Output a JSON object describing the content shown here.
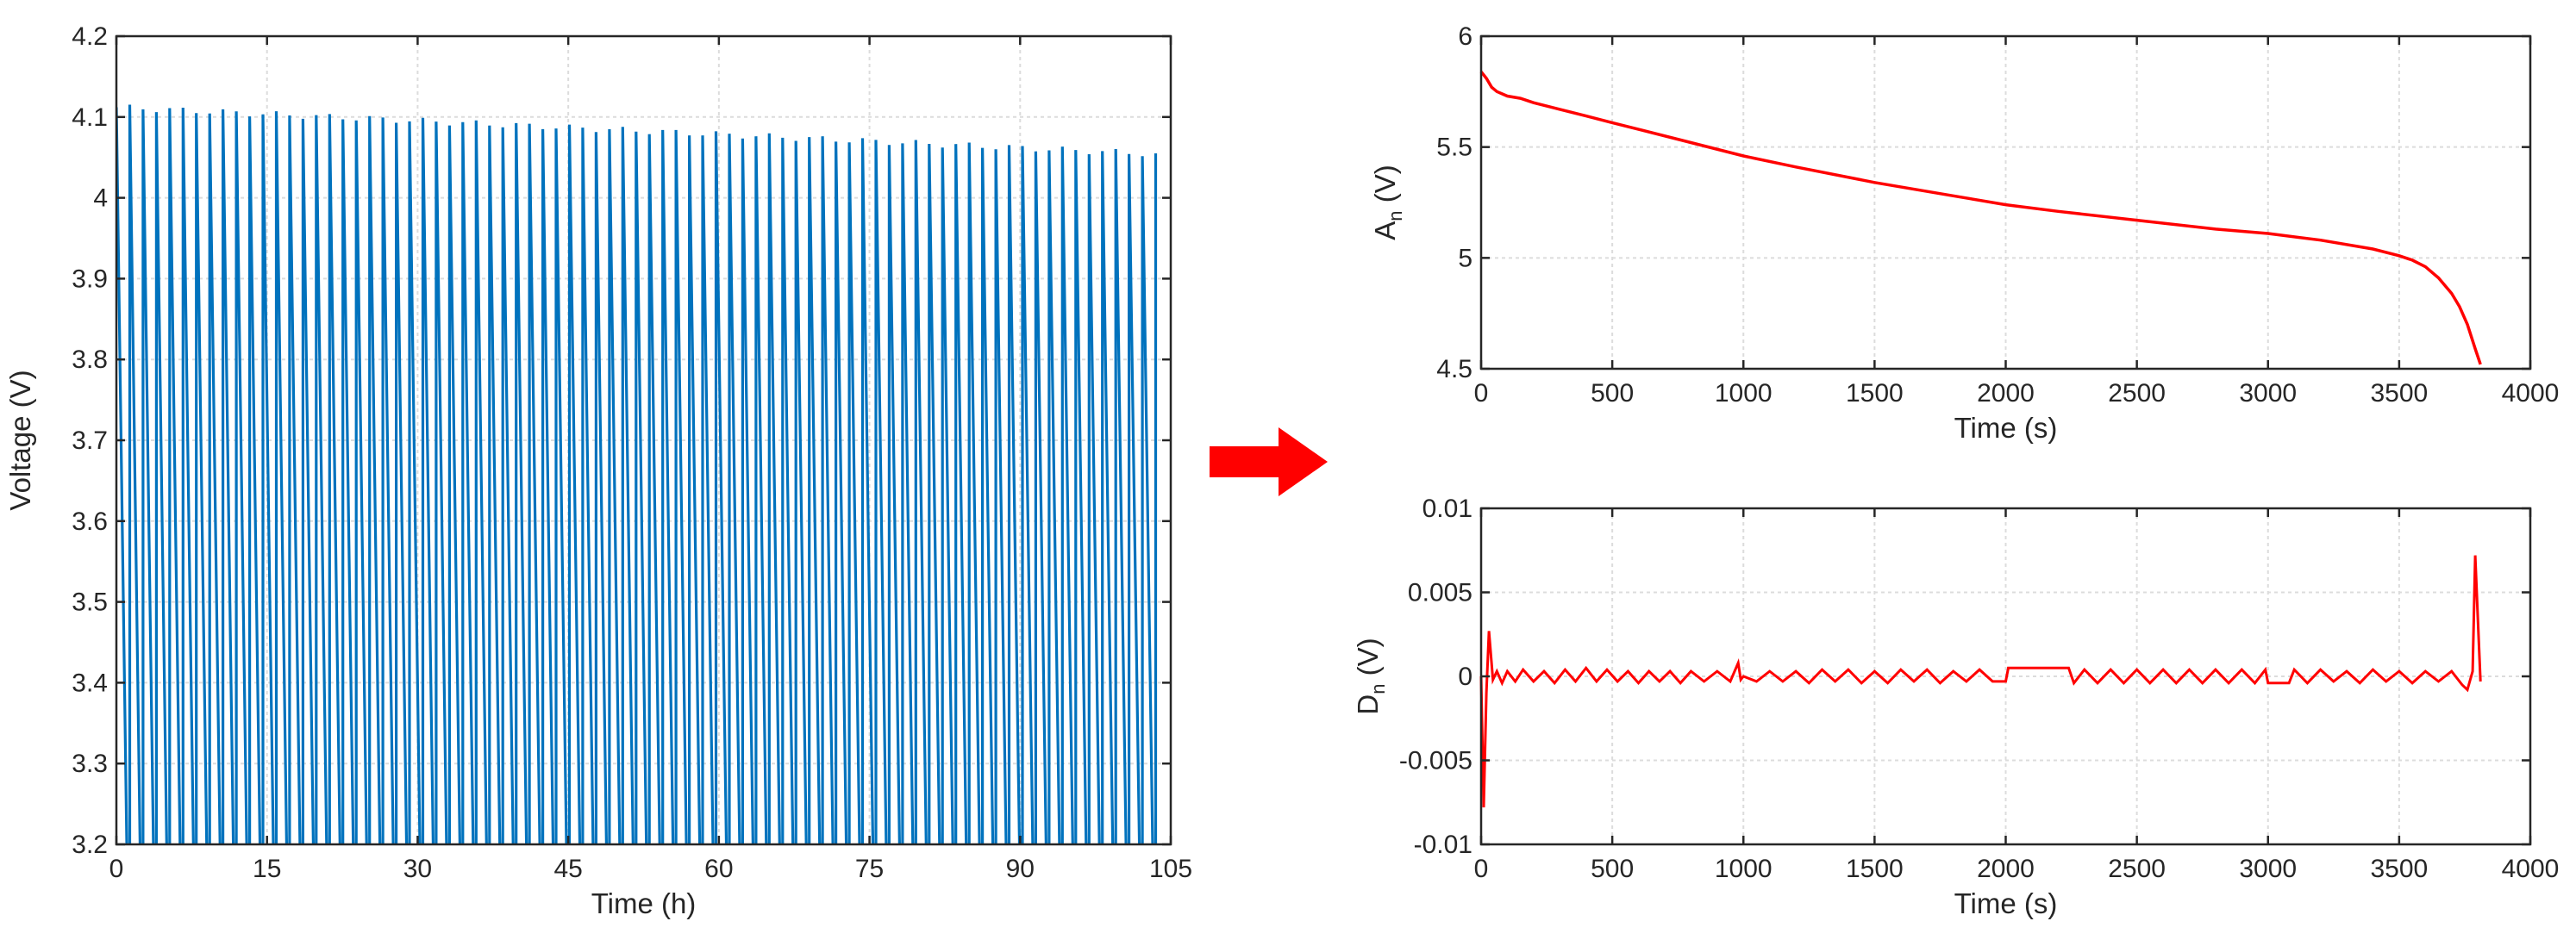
{
  "arrow_color": "#ff0000",
  "chart_data": [
    {
      "id": "voltage",
      "type": "line",
      "xlabel": "Time (h)",
      "ylabel": "Voltage (V)",
      "xlim": [
        0,
        105
      ],
      "ylim": [
        3.2,
        4.2
      ],
      "xticks": [
        0,
        15,
        30,
        45,
        60,
        75,
        90,
        105
      ],
      "yticks": [
        3.2,
        3.3,
        3.4,
        3.5,
        3.6,
        3.7,
        3.8,
        3.9,
        4,
        4.1,
        4.2
      ],
      "grid": true,
      "color": "#0072bd",
      "series": [
        {
          "pattern": "charge-discharge cycles",
          "cycles": 78,
          "x_start": 0,
          "x_end": 103.5,
          "peak_start": 4.112,
          "peak_end": 4.055,
          "trough": 3.2,
          "notes": "voltage cycles between ~4.1 V and below 3.2 V, peaks slowly decreasing"
        }
      ]
    },
    {
      "id": "An",
      "type": "line",
      "xlabel": "Time (s)",
      "ylabel": "A",
      "ylabel_sub": "n",
      "ylabel_unit": " (V)",
      "xlim": [
        0,
        4000
      ],
      "ylim": [
        4.5,
        6
      ],
      "xticks": [
        0,
        500,
        1000,
        1500,
        2000,
        2500,
        3000,
        3500,
        4000
      ],
      "yticks": [
        4.5,
        5,
        5.5,
        6
      ],
      "grid": true,
      "color": "#ff0000",
      "series": [
        {
          "x": [
            0,
            20,
            40,
            60,
            80,
            100,
            150,
            200,
            300,
            400,
            500,
            600,
            800,
            1000,
            1200,
            1500,
            1800,
            2000,
            2200,
            2500,
            2800,
            3000,
            3200,
            3400,
            3500,
            3550,
            3600,
            3650,
            3700,
            3730,
            3760,
            3790,
            3810
          ],
          "y": [
            5.84,
            5.81,
            5.77,
            5.75,
            5.74,
            5.73,
            5.72,
            5.7,
            5.67,
            5.64,
            5.61,
            5.58,
            5.52,
            5.46,
            5.41,
            5.34,
            5.28,
            5.24,
            5.21,
            5.17,
            5.13,
            5.11,
            5.08,
            5.04,
            5.01,
            4.99,
            4.96,
            4.91,
            4.84,
            4.78,
            4.7,
            4.59,
            4.52
          ]
        }
      ]
    },
    {
      "id": "Dn",
      "type": "line",
      "xlabel": "Time (s)",
      "ylabel": "D",
      "ylabel_sub": "n",
      "ylabel_unit": " (V)",
      "xlim": [
        0,
        4000
      ],
      "ylim": [
        -0.01,
        0.01
      ],
      "xticks": [
        0,
        500,
        1000,
        1500,
        2000,
        2500,
        3000,
        3500,
        4000
      ],
      "yticks": [
        -0.01,
        -0.005,
        0,
        0.005,
        0.01
      ],
      "ytick_labels": [
        "-0.01",
        "-0.005",
        "0",
        "0.005",
        "0.01"
      ],
      "grid": true,
      "color": "#ff0000",
      "series": [
        {
          "x": [
            0,
            10,
            20,
            30,
            45,
            60,
            80,
            100,
            130,
            160,
            200,
            240,
            280,
            320,
            360,
            400,
            440,
            480,
            520,
            560,
            600,
            640,
            680,
            720,
            760,
            800,
            850,
            900,
            950,
            980,
            990,
            1000,
            1050,
            1100,
            1150,
            1200,
            1250,
            1300,
            1350,
            1400,
            1450,
            1500,
            1550,
            1600,
            1650,
            1700,
            1750,
            1800,
            1850,
            1900,
            1950,
            2000,
            2010,
            2050,
            2100,
            2150,
            2200,
            2240,
            2260,
            2300,
            2350,
            2400,
            2450,
            2500,
            2550,
            2600,
            2650,
            2700,
            2750,
            2800,
            2850,
            2900,
            2950,
            2990,
            3000,
            3050,
            3080,
            3100,
            3150,
            3200,
            3250,
            3300,
            3350,
            3400,
            3450,
            3500,
            3550,
            3600,
            3650,
            3700,
            3740,
            3760,
            3780,
            3790,
            3800,
            3810
          ],
          "y": [
            0,
            -0.0078,
            -0.001,
            0.0027,
            -0.0002,
            0.0003,
            -0.0004,
            0.0003,
            -0.0003,
            0.0004,
            -0.0003,
            0.0003,
            -0.0004,
            0.0004,
            -0.0003,
            0.0005,
            -0.0003,
            0.0004,
            -0.0003,
            0.0003,
            -0.0004,
            0.0003,
            -0.0003,
            0.0003,
            -0.0004,
            0.0003,
            -0.0003,
            0.0003,
            -0.0003,
            0.0008,
            -0.0002,
            0,
            -0.0003,
            0.0003,
            -0.0003,
            0.0003,
            -0.0004,
            0.0004,
            -0.0003,
            0.0004,
            -0.0004,
            0.0003,
            -0.0004,
            0.0004,
            -0.0003,
            0.0004,
            -0.0004,
            0.0003,
            -0.0003,
            0.0004,
            -0.0003,
            -0.0003,
            0.0005,
            0.0005,
            0.0005,
            0.0005,
            0.0005,
            0.0005,
            -0.0004,
            0.0004,
            -0.0004,
            0.0004,
            -0.0004,
            0.0004,
            -0.0004,
            0.0004,
            -0.0004,
            0.0004,
            -0.0004,
            0.0004,
            -0.0004,
            0.0004,
            -0.0004,
            0.0004,
            -0.0004,
            -0.0004,
            -0.0004,
            0.0004,
            -0.0004,
            0.0004,
            -0.0003,
            0.0003,
            -0.0004,
            0.0004,
            -0.0003,
            0.0003,
            -0.0004,
            0.0003,
            -0.0003,
            0.0003,
            -0.0005,
            -0.0008,
            0.0003,
            0.0072,
            0.0035,
            -0.0003
          ]
        }
      ]
    }
  ]
}
